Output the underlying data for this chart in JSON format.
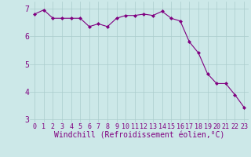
{
  "x": [
    0,
    1,
    2,
    3,
    4,
    5,
    6,
    7,
    8,
    9,
    10,
    11,
    12,
    13,
    14,
    15,
    16,
    17,
    18,
    19,
    20,
    21,
    22,
    23
  ],
  "y": [
    6.8,
    6.95,
    6.65,
    6.65,
    6.65,
    6.65,
    6.35,
    6.45,
    6.35,
    6.65,
    6.75,
    6.75,
    6.8,
    6.75,
    6.9,
    6.65,
    6.55,
    5.8,
    5.4,
    4.65,
    4.3,
    4.3,
    3.9,
    3.45
  ],
  "line_color": "#800080",
  "marker": "D",
  "marker_size": 2.0,
  "bg_color": "#cce8e8",
  "grid_color": "#aacccc",
  "xlabel": "Windchill (Refroidissement éolien,°C)",
  "xlabel_color": "#800080",
  "tick_color": "#800080",
  "ylim": [
    2.9,
    7.25
  ],
  "xlim": [
    -0.5,
    23.5
  ],
  "yticks": [
    3,
    4,
    5,
    6,
    7
  ],
  "xticks": [
    0,
    1,
    2,
    3,
    4,
    5,
    6,
    7,
    8,
    9,
    10,
    11,
    12,
    13,
    14,
    15,
    16,
    17,
    18,
    19,
    20,
    21,
    22,
    23
  ],
  "xtick_labels": [
    "0",
    "1",
    "2",
    "3",
    "4",
    "5",
    "6",
    "7",
    "8",
    "9",
    "10",
    "11",
    "12",
    "13",
    "14",
    "15",
    "16",
    "17",
    "18",
    "19",
    "20",
    "21",
    "22",
    "23"
  ],
  "font_size": 6,
  "ylabel_font_size": 7,
  "xlabel_font_size": 7,
  "linewidth": 0.8
}
